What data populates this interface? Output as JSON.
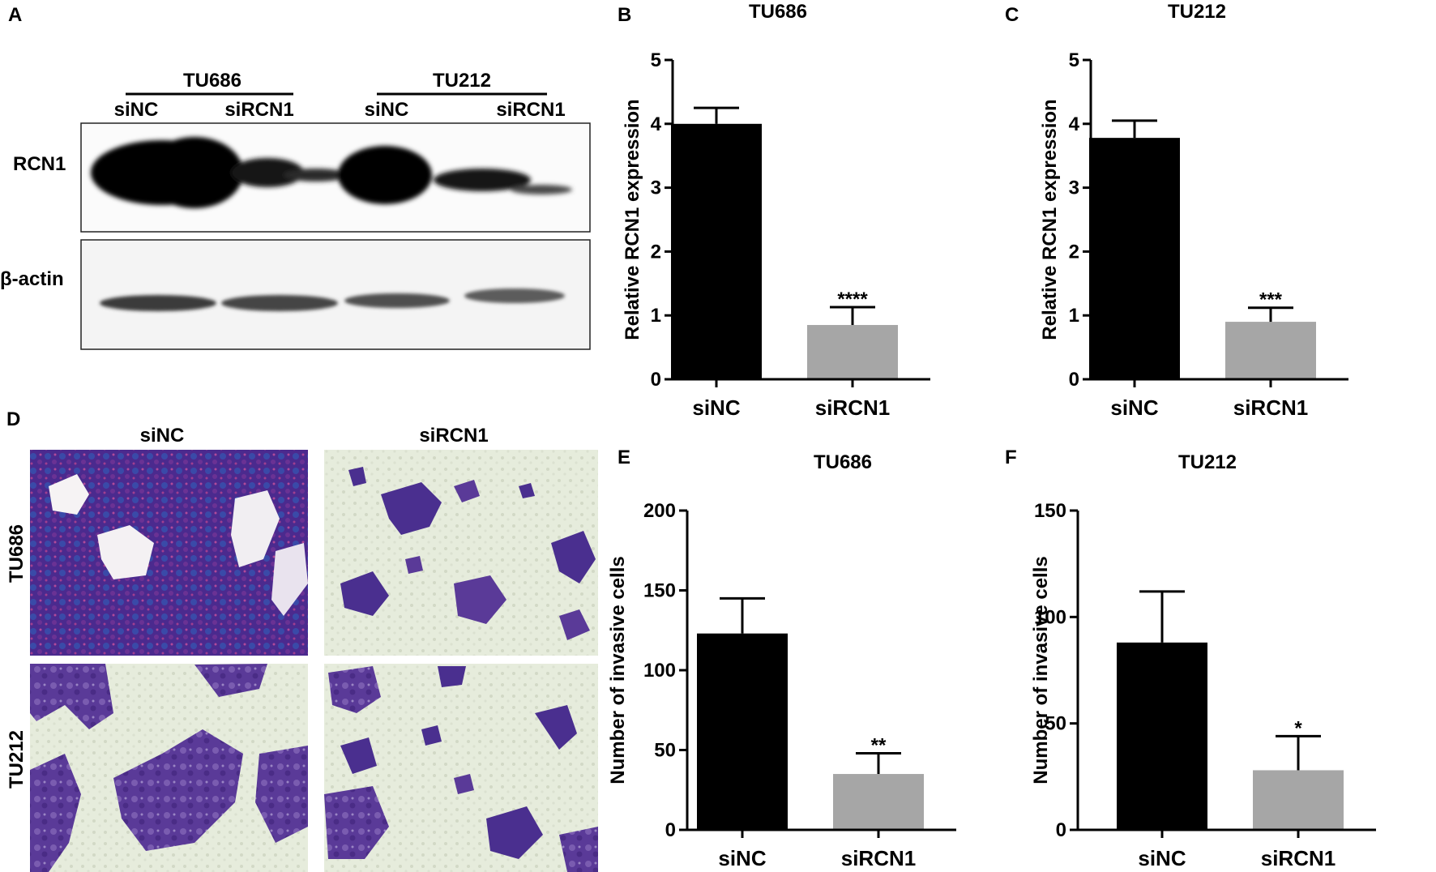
{
  "panels": {
    "A": {
      "label": "A",
      "groups": [
        "TU686",
        "TU212"
      ],
      "lanes": [
        "siNC",
        "siRCN1",
        "siNC",
        "siRCN1"
      ],
      "blots": [
        "RCN1",
        "β-actin"
      ]
    },
    "D": {
      "label": "D",
      "columns": [
        "siNC",
        "siRCN1"
      ],
      "rows": [
        "TU686",
        "TU212"
      ]
    }
  },
  "colors": {
    "siNC": "#000000",
    "siRCN1": "#a6a6a6",
    "stain_dark": "#4a2f8f",
    "stain_bg": "#e6ecdc"
  },
  "chart_data": [
    {
      "panel": "B",
      "type": "bar",
      "title": "TU686",
      "ylabel": "Relative RCN1 expression",
      "xlabel": "",
      "categories": [
        "siNC",
        "siRCN1"
      ],
      "values": [
        4.0,
        0.85
      ],
      "errors": [
        0.25,
        0.28
      ],
      "significance": [
        "",
        "****"
      ],
      "ylim": [
        0,
        5
      ],
      "yticks": [
        0,
        1,
        2,
        3,
        4,
        5
      ]
    },
    {
      "panel": "C",
      "type": "bar",
      "title": "TU212",
      "ylabel": "Relative RCN1 expression",
      "xlabel": "",
      "categories": [
        "siNC",
        "siRCN1"
      ],
      "values": [
        3.78,
        0.9
      ],
      "errors": [
        0.27,
        0.22
      ],
      "significance": [
        "",
        "***"
      ],
      "ylim": [
        0,
        5
      ],
      "yticks": [
        0,
        1,
        2,
        3,
        4,
        5
      ]
    },
    {
      "panel": "E",
      "type": "bar",
      "title": "TU686",
      "ylabel": "Number of invasive cells",
      "xlabel": "",
      "categories": [
        "siNC",
        "siRCN1"
      ],
      "values": [
        123,
        35
      ],
      "errors": [
        22,
        13
      ],
      "significance": [
        "",
        "**"
      ],
      "ylim": [
        0,
        200
      ],
      "yticks": [
        0,
        50,
        100,
        150,
        200
      ]
    },
    {
      "panel": "F",
      "type": "bar",
      "title": "TU212",
      "ylabel": "Number of invasive cells",
      "xlabel": "",
      "categories": [
        "siNC",
        "siRCN1"
      ],
      "values": [
        88,
        28
      ],
      "errors": [
        24,
        16
      ],
      "significance": [
        "",
        "*"
      ],
      "ylim": [
        0,
        150
      ],
      "yticks": [
        0,
        50,
        100,
        150
      ]
    }
  ]
}
